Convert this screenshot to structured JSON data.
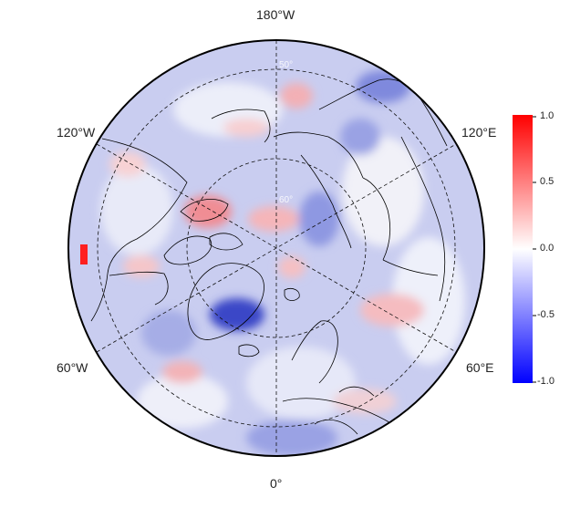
{
  "map": {
    "projection": "north-polar-stereographic",
    "longitude_labels": [
      "180°W",
      "120°W",
      "120°E",
      "60°W",
      "60°E",
      "0°"
    ],
    "latitude_labels": [
      "50°",
      "60°"
    ],
    "field": "anomaly-correlation-style-field"
  },
  "colorbar": {
    "ticks": [
      "1.0",
      "0.5",
      "0.0",
      "-0.5",
      "-1.0"
    ],
    "range": [
      -1.0,
      1.0
    ],
    "colors": {
      "max": "#ff0000",
      "mid": "#ffffff",
      "min": "#0000ff"
    }
  }
}
